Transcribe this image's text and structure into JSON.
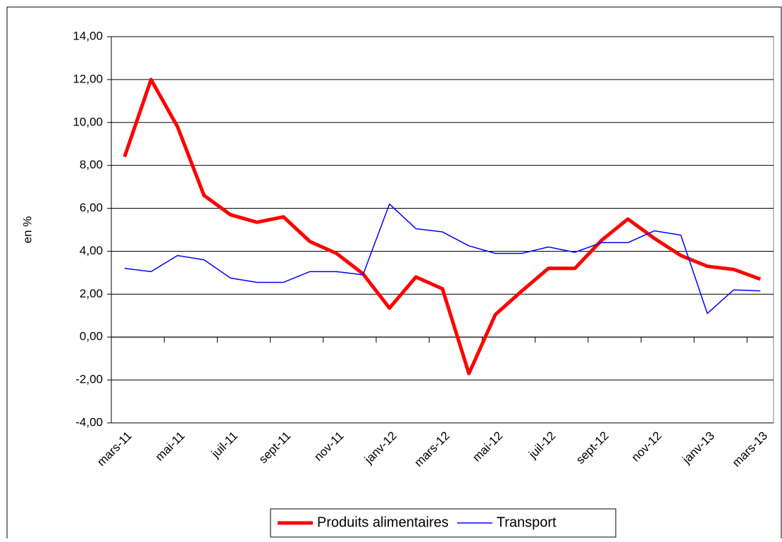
{
  "chart_data": {
    "type": "line",
    "y_label": "en %",
    "categories": [
      "mars-11",
      null,
      "mai-11",
      null,
      "juil-11",
      null,
      "sept-11",
      null,
      "nov-11",
      null,
      "janv-12",
      null,
      "mars-12",
      null,
      "mai-12",
      null,
      "juil-12",
      null,
      "sept-12",
      null,
      "nov-12",
      null,
      "janv-13",
      null,
      "mars-13"
    ],
    "series": [
      {
        "name": "Produits alimentaires",
        "color": "#ff0000",
        "values": [
          8.4,
          12.0,
          9.8,
          6.6,
          5.7,
          5.35,
          5.6,
          4.45,
          3.9,
          2.95,
          1.35,
          2.8,
          2.25,
          -1.7,
          1.05,
          2.15,
          3.2,
          3.2,
          4.5,
          5.5,
          4.6,
          3.8,
          3.3,
          3.15,
          2.7
        ]
      },
      {
        "name": "Transport",
        "color": "#0000ff",
        "values": [
          3.2,
          3.05,
          3.8,
          3.6,
          2.75,
          2.55,
          2.55,
          3.05,
          3.05,
          2.9,
          6.2,
          5.05,
          4.9,
          4.25,
          3.9,
          3.9,
          4.2,
          3.95,
          4.4,
          4.4,
          4.95,
          4.75,
          1.1,
          2.2,
          2.15
        ]
      }
    ],
    "ylim": [
      -4,
      14
    ],
    "yticks": [
      {
        "value": -4,
        "label": "-4,00"
      },
      {
        "value": -2,
        "label": "-2,00"
      },
      {
        "value": 0,
        "label": "0,00"
      },
      {
        "value": 2,
        "label": "2,00"
      },
      {
        "value": 4,
        "label": "4,00"
      },
      {
        "value": 6,
        "label": "6,00"
      },
      {
        "value": 8,
        "label": "8,00"
      },
      {
        "value": 10,
        "label": "10,00"
      },
      {
        "value": 12,
        "label": "12,00"
      },
      {
        "value": 14,
        "label": "14,00"
      }
    ],
    "grid": true,
    "legend": "bottom"
  }
}
